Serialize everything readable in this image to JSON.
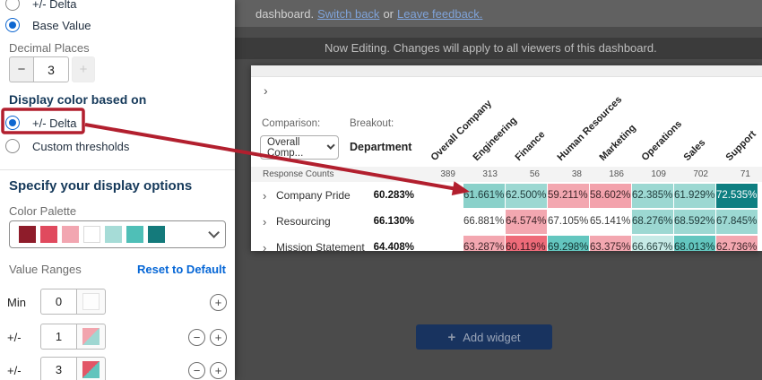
{
  "sidebar": {
    "value_type_options": [
      {
        "label": "+/- Delta",
        "selected": false
      },
      {
        "label": "Base Value",
        "selected": true
      }
    ],
    "decimal_places": {
      "label": "Decimal Places",
      "value": "3",
      "decrement": "−",
      "increment": "+"
    },
    "display_color": {
      "heading": "Display color based on",
      "options": [
        {
          "label": "+/- Delta",
          "selected": true
        },
        {
          "label": "Custom thresholds",
          "selected": false
        }
      ]
    },
    "display_options_heading": "Specify your display options",
    "color_palette": {
      "label": "Color Palette",
      "swatches": [
        "#8e1c2a",
        "#e04a5e",
        "#f2a6b1",
        "#ffffff",
        "#a6dcd7",
        "#4fbfb7",
        "#147a7b"
      ]
    },
    "value_ranges": {
      "label": "Value Ranges",
      "reset_label": "Reset to Default",
      "rows": [
        {
          "label": "Min",
          "value": "0",
          "swatch": null
        },
        {
          "label": "+/-",
          "value": "1",
          "swatch": {
            "top": "#f2a4ad",
            "bottom": "#9fd7d2"
          }
        },
        {
          "label": "+/-",
          "value": "3",
          "swatch": {
            "top": "#e25667",
            "bottom": "#62c4bd"
          }
        }
      ]
    }
  },
  "topbar": {
    "prefix": "dashboard.",
    "link_switch": "Switch back",
    "conjunction": "or",
    "link_feedback": "Leave feedback."
  },
  "banner": {
    "message": "Now Editing. Changes will apply to all viewers of this dashboard."
  },
  "widget": {
    "expander": "›",
    "comparison": {
      "label": "Comparison:",
      "value": "Overall Comp..."
    },
    "breakout": {
      "label": "Breakout:",
      "value": "Department"
    },
    "columns": [
      "Overall Company",
      "Engineering",
      "Finance",
      "Human Resources",
      "Marketing",
      "Operations",
      "Sales",
      "Support"
    ],
    "response_counts": {
      "label": "Response Counts",
      "values": [
        "389",
        "313",
        "56",
        "38",
        "186",
        "109",
        "702",
        "71"
      ]
    },
    "rows": [
      {
        "label": "Company Pride",
        "overall": "60.283%",
        "cells": [
          {
            "value": "61.661%",
            "bg": "#8ad1ca",
            "fg": "#1f3a3a"
          },
          {
            "value": "62.500%",
            "bg": "#9cd8d2",
            "fg": "#1f3a3a"
          },
          {
            "value": "59.211%",
            "bg": "#f3a7b0",
            "fg": "#40262a"
          },
          {
            "value": "58.602%",
            "bg": "#f3a2ac",
            "fg": "#40262a"
          },
          {
            "value": "62.385%",
            "bg": "#9cd8d2",
            "fg": "#1f3a3a"
          },
          {
            "value": "61.929%",
            "bg": "#9cd8d2",
            "fg": "#1f3a3a"
          },
          {
            "value": "72.535% ^",
            "bg": "#0e7f81",
            "fg": "#ffffff"
          }
        ]
      },
      {
        "label": "Resourcing",
        "overall": "66.130%",
        "cells": [
          {
            "value": "66.881%",
            "bg": "#ffffff",
            "fg": "#3a3a3a"
          },
          {
            "value": "64.574%",
            "bg": "#f3a7b0",
            "fg": "#40262a"
          },
          {
            "value": "67.105%",
            "bg": "#ffffff",
            "fg": "#3a3a3a"
          },
          {
            "value": "65.141%",
            "bg": "#ffffff",
            "fg": "#3a3a3a"
          },
          {
            "value": "68.276%",
            "bg": "#9cd8d2",
            "fg": "#1f3a3a"
          },
          {
            "value": "68.592%",
            "bg": "#9cd8d2",
            "fg": "#1f3a3a"
          },
          {
            "value": "67.845%",
            "bg": "#9cd8d2",
            "fg": "#1f3a3a"
          }
        ]
      },
      {
        "label": "Mission Statement",
        "overall": "64.408%",
        "cells": [
          {
            "value": "63.287%",
            "bg": "#f3a7b0",
            "fg": "#40262a"
          },
          {
            "value": "60.119%",
            "bg": "#ee6b79",
            "fg": "#3d1a20"
          },
          {
            "value": "69.298%",
            "bg": "#63c6bf",
            "fg": "#143432"
          },
          {
            "value": "63.375%",
            "bg": "#f3a7b0",
            "fg": "#40262a"
          },
          {
            "value": "66.667%",
            "bg": "#c6eae6",
            "fg": "#2a4542"
          },
          {
            "value": "68.013%",
            "bg": "#63c6bf",
            "fg": "#143432"
          },
          {
            "value": "62.736%",
            "bg": "#f3a7b0",
            "fg": "#40262a"
          }
        ]
      }
    ]
  },
  "add_widget": {
    "plus": "+",
    "label": "Add widget"
  },
  "annotation": {
    "color": "#b21f2e"
  }
}
